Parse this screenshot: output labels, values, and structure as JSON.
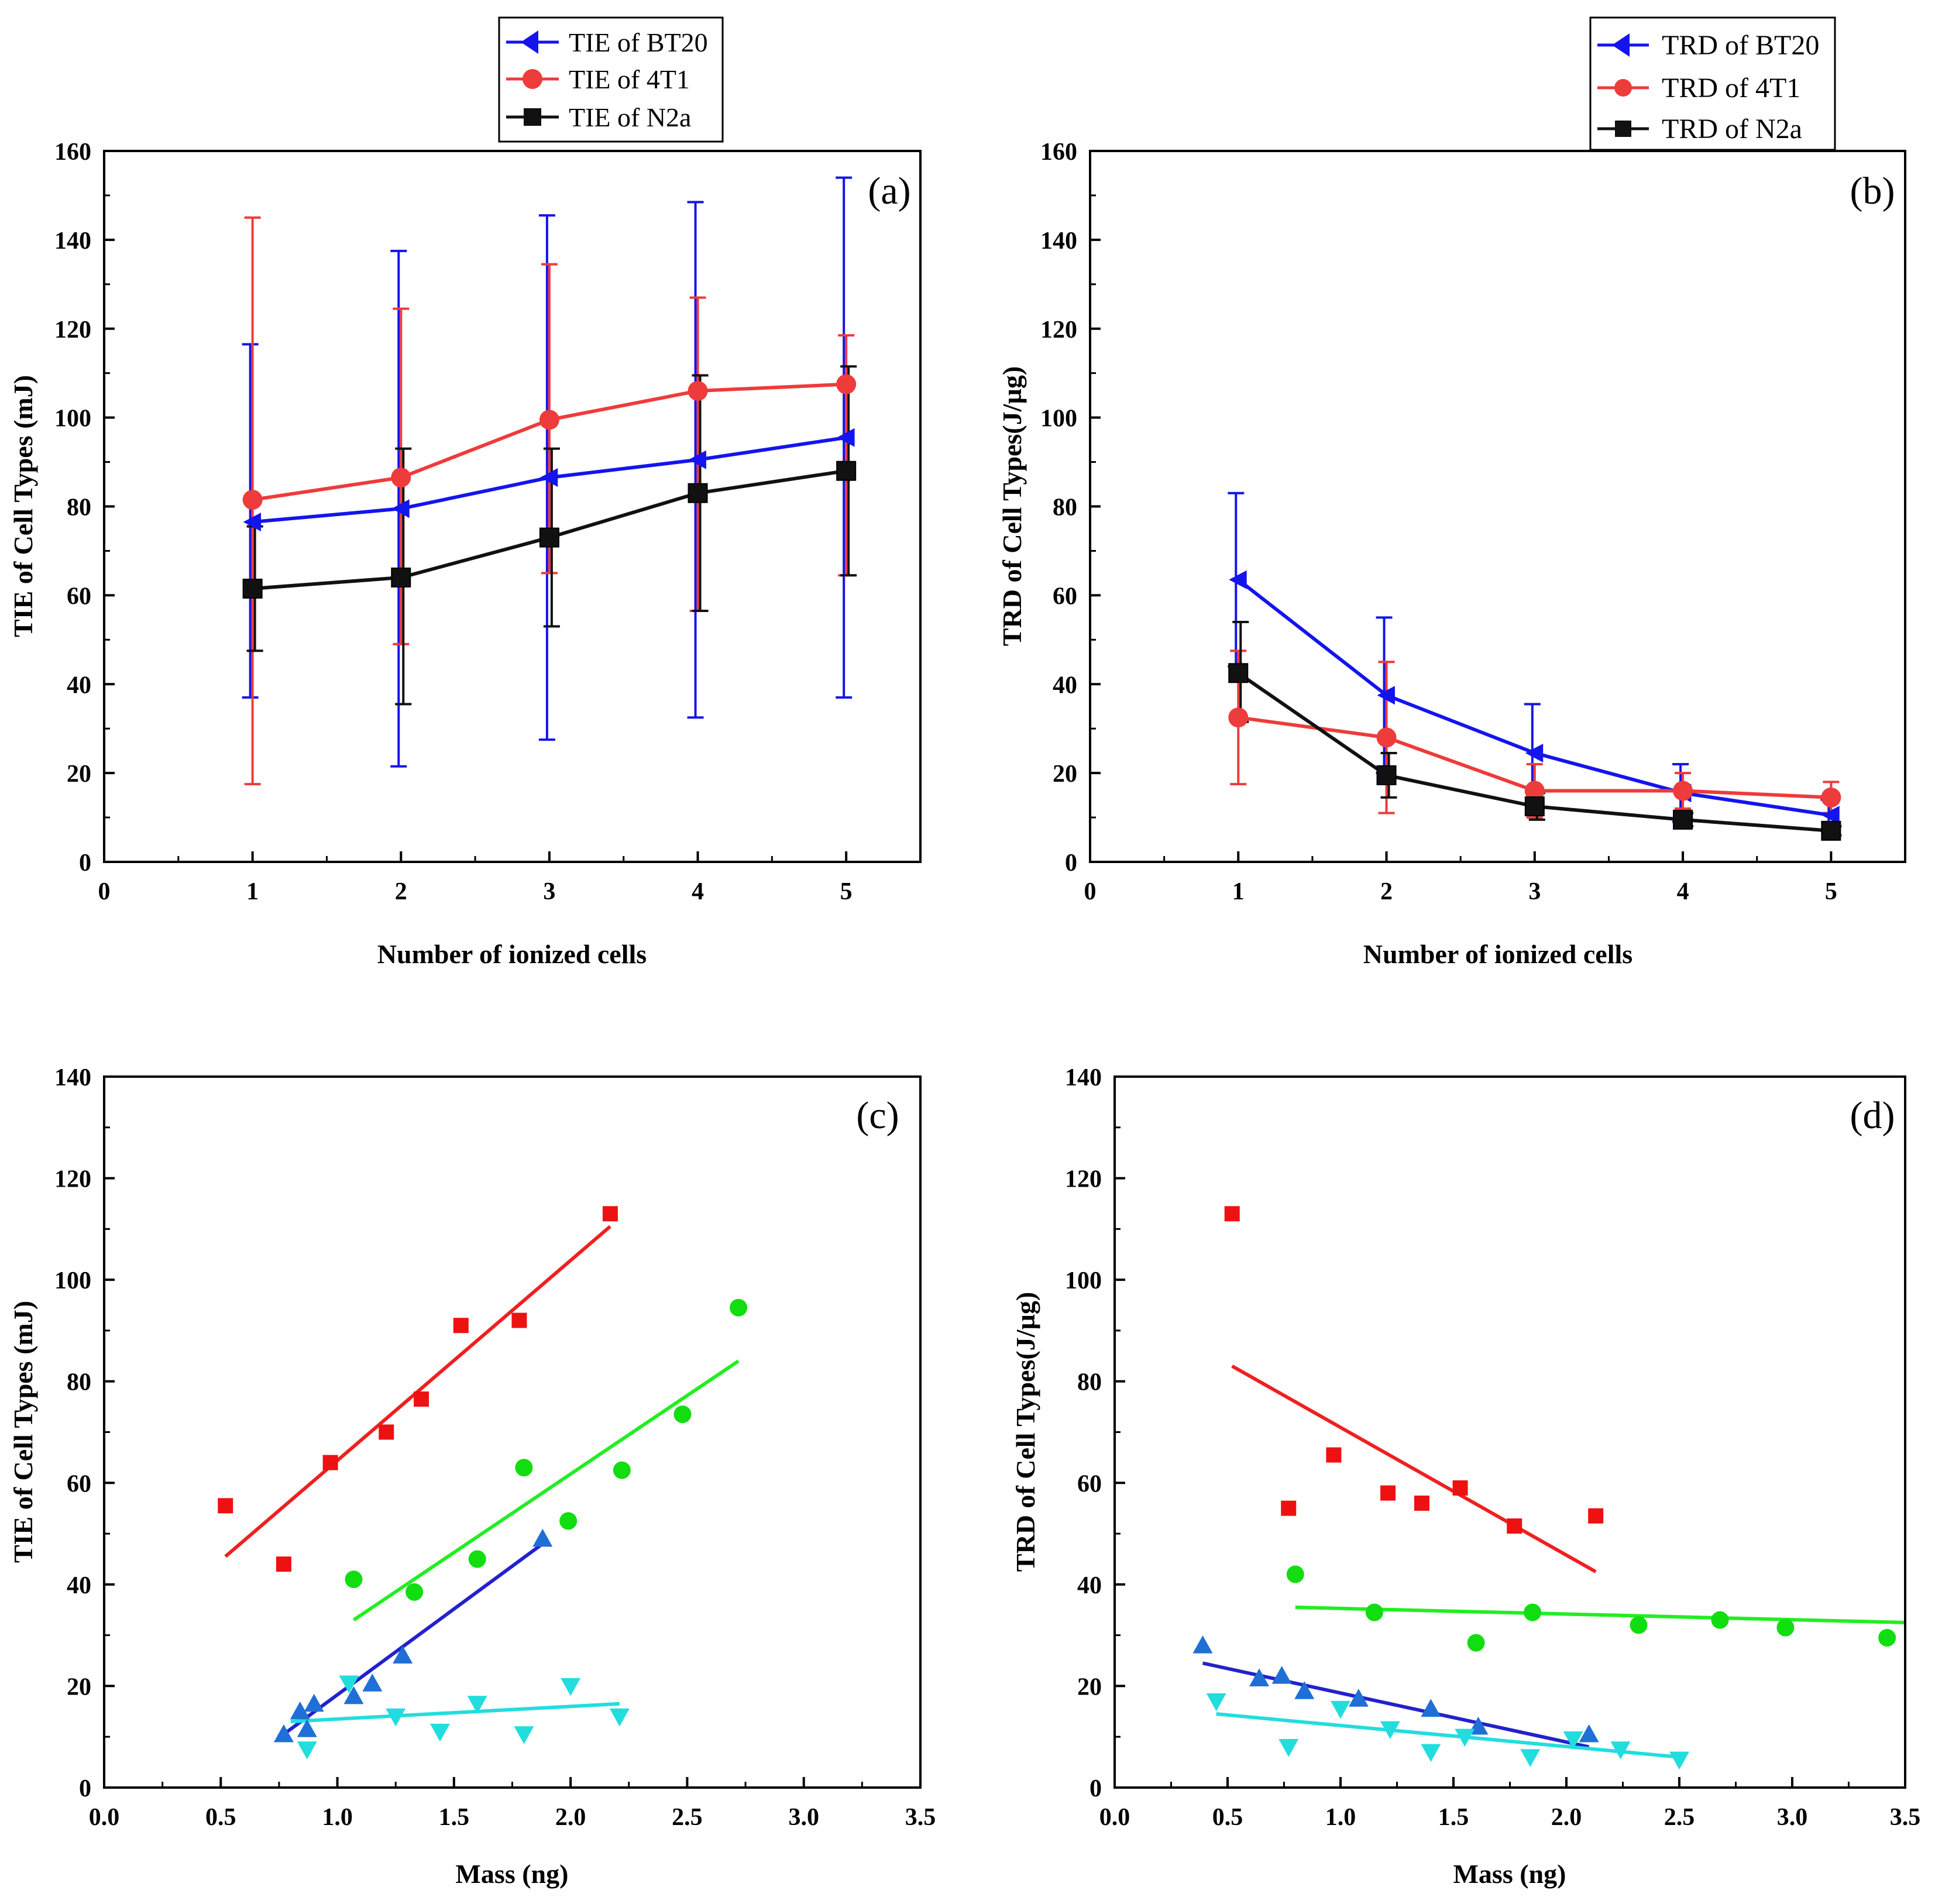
{
  "colors": {
    "blue": "#1414ee",
    "red": "#ee3b3b",
    "black": "#111111",
    "scatter_red": "#ee1111",
    "scatter_green": "#11dd11",
    "scatter_blue": "#1f6fd6",
    "scatter_cyan": "#22dddd",
    "fit_red": "#ee2020",
    "fit_green": "#22ee22",
    "fit_blue": "#2222cc",
    "fit_cyan": "#22dddd"
  },
  "chart_data": [
    {
      "id": "a",
      "type": "line",
      "panel_label": "(a)",
      "xlabel": "Number of ionized cells",
      "ylabel": "TIE of Cell Types (mJ)",
      "xlim": [
        0,
        5.5
      ],
      "ylim": [
        0,
        160
      ],
      "xticks": [
        0,
        1,
        2,
        3,
        4,
        5
      ],
      "xtick_labels": [
        "0",
        "1",
        "2",
        "3",
        "4",
        "5"
      ],
      "yticks": [
        0,
        20,
        40,
        60,
        80,
        100,
        120,
        140,
        160
      ],
      "ytick_labels": [
        "0",
        "20",
        "40",
        "60",
        "80",
        "100",
        "120",
        "140",
        "160"
      ],
      "legend": [
        "TIE of BT20",
        "TIE of 4T1",
        "TIE of N2a"
      ],
      "x": [
        1,
        2,
        3,
        4,
        5
      ],
      "series": [
        {
          "name": "TIE of BT20",
          "color_key": "blue",
          "marker": "triangle-left",
          "values": [
            76.5,
            79.5,
            86.5,
            90.5,
            95.5
          ],
          "err_lo": [
            37,
            21.5,
            27.5,
            32.5,
            37
          ],
          "err_hi": [
            116.5,
            137.5,
            145.5,
            148.5,
            154
          ]
        },
        {
          "name": "TIE of 4T1",
          "color_key": "red",
          "marker": "circle",
          "values": [
            81.5,
            86.5,
            99.5,
            106,
            107.5
          ],
          "err_lo": [
            17.5,
            49,
            65,
            56.5,
            64.5
          ],
          "err_hi": [
            145,
            124.5,
            134.5,
            127,
            118.5
          ]
        },
        {
          "name": "TIE of N2a",
          "color_key": "black",
          "marker": "square",
          "values": [
            61.5,
            64,
            73,
            83,
            88
          ],
          "err_lo": [
            47.5,
            35.5,
            53,
            56.5,
            64.5
          ],
          "err_hi": [
            75.5,
            93,
            93,
            109.5,
            111.5
          ]
        }
      ]
    },
    {
      "id": "b",
      "type": "line",
      "panel_label": "(b)",
      "xlabel": "Number of ionized cells",
      "ylabel": "TRD of Cell Types(J/µg)",
      "xlim": [
        0,
        5.5
      ],
      "ylim": [
        0,
        160
      ],
      "xticks": [
        0,
        1,
        2,
        3,
        4,
        5
      ],
      "xtick_labels": [
        "0",
        "1",
        "2",
        "3",
        "4",
        "5"
      ],
      "yticks": [
        0,
        20,
        40,
        60,
        80,
        100,
        120,
        140,
        160
      ],
      "ytick_labels": [
        "0",
        "20",
        "40",
        "60",
        "80",
        "100",
        "120",
        "140",
        "160"
      ],
      "legend": [
        "TRD of BT20",
        "TRD of 4T1",
        "TRD of N2a"
      ],
      "x": [
        1,
        2,
        3,
        4,
        5
      ],
      "series": [
        {
          "name": "TRD of BT20",
          "color_key": "blue",
          "marker": "triangle-left",
          "values": [
            63.5,
            37.5,
            24.5,
            15.5,
            10.5
          ],
          "err_lo": [
            44,
            20,
            13,
            9,
            7
          ],
          "err_hi": [
            83,
            55,
            35.5,
            22,
            14
          ]
        },
        {
          "name": "TRD of 4T1",
          "color_key": "red",
          "marker": "circle",
          "values": [
            32.5,
            28,
            16,
            16,
            14.5
          ],
          "err_lo": [
            17.5,
            11,
            10,
            12,
            11
          ],
          "err_hi": [
            47.5,
            45,
            22,
            20,
            18
          ]
        },
        {
          "name": "TRD of N2a",
          "color_key": "black",
          "marker": "square",
          "values": [
            42.5,
            19.5,
            12.5,
            9.5,
            7
          ],
          "err_lo": [
            31.5,
            14.5,
            9.5,
            8,
            6
          ],
          "err_hi": [
            54,
            24.5,
            15.5,
            11,
            8
          ]
        }
      ]
    },
    {
      "id": "c",
      "type": "scatter",
      "panel_label": "(c)",
      "xlabel": "Mass (ng)",
      "ylabel": "TIE of Cell Types (mJ)",
      "xlim": [
        0,
        3.5
      ],
      "ylim": [
        0,
        140
      ],
      "xticks": [
        0,
        0.5,
        1,
        1.5,
        2,
        2.5,
        3,
        3.5
      ],
      "xtick_labels": [
        "0.0",
        "0.5",
        "1.0",
        "1.5",
        "2.0",
        "2.5",
        "3.0",
        "3.5"
      ],
      "yticks": [
        0,
        20,
        40,
        60,
        80,
        100,
        120,
        140
      ],
      "ytick_labels": [
        "0",
        "20",
        "40",
        "60",
        "80",
        "100",
        "120",
        "140"
      ],
      "series": [
        {
          "color_key": "scatter_red",
          "marker": "square",
          "x": [
            0.52,
            0.77,
            0.97,
            1.21,
            1.36,
            1.53,
            1.78,
            2.17
          ],
          "y": [
            55.5,
            44,
            64,
            70,
            76.5,
            91,
            92,
            113
          ],
          "fit": [
            [
              0.52,
              45.5
            ],
            [
              2.17,
              110.5
            ]
          ],
          "fit_color_key": "fit_red"
        },
        {
          "color_key": "scatter_green",
          "marker": "circle",
          "x": [
            1.07,
            1.33,
            1.6,
            1.8,
            1.99,
            2.22,
            2.48,
            2.72
          ],
          "y": [
            41,
            38.5,
            45,
            63,
            52.5,
            62.5,
            73.5,
            94.5
          ],
          "fit": [
            [
              1.07,
              33
            ],
            [
              2.72,
              84
            ]
          ],
          "fit_color_key": "fit_green"
        },
        {
          "color_key": "scatter_blue",
          "marker": "triangle-up",
          "x": [
            0.77,
            0.84,
            0.87,
            0.9,
            1.07,
            1.15,
            1.28,
            1.88
          ],
          "y": [
            10.5,
            15,
            11.5,
            16.5,
            18,
            20.5,
            26,
            49
          ],
          "fit": [
            [
              0.77,
              10.5
            ],
            [
              1.88,
              48
            ]
          ],
          "fit_color_key": "fit_blue"
        },
        {
          "color_key": "scatter_cyan",
          "marker": "triangle-down",
          "x": [
            0.87,
            1.05,
            1.25,
            1.44,
            1.6,
            1.8,
            2.0,
            2.21
          ],
          "y": [
            7.5,
            20.5,
            14,
            11,
            16.5,
            10.5,
            20,
            14
          ],
          "fit": [
            [
              0.8,
              13
            ],
            [
              2.21,
              16.5
            ]
          ],
          "fit_color_key": "fit_cyan"
        }
      ]
    },
    {
      "id": "d",
      "type": "scatter",
      "panel_label": "(d)",
      "xlabel": "Mass (ng)",
      "ylabel": "TRD of Cell Types(J/µg)",
      "xlim": [
        0,
        3.5
      ],
      "ylim": [
        0,
        140
      ],
      "xticks": [
        0,
        0.5,
        1,
        1.5,
        2,
        2.5,
        3,
        3.5
      ],
      "xtick_labels": [
        "0.0",
        "0.5",
        "1.0",
        "1.5",
        "2.0",
        "2.5",
        "3.0",
        "3.5"
      ],
      "yticks": [
        0,
        20,
        40,
        60,
        80,
        100,
        120,
        140
      ],
      "ytick_labels": [
        "0",
        "20",
        "40",
        "60",
        "80",
        "100",
        "120",
        "140"
      ],
      "series": [
        {
          "color_key": "scatter_red",
          "marker": "square",
          "x": [
            0.52,
            0.77,
            0.97,
            1.21,
            1.36,
            1.53,
            1.77,
            2.13
          ],
          "y": [
            113,
            55,
            65.5,
            58,
            56,
            59,
            51.5,
            53.5
          ],
          "fit": [
            [
              0.52,
              83
            ],
            [
              2.13,
              42.5
            ]
          ],
          "fit_color_key": "fit_red"
        },
        {
          "color_key": "scatter_green",
          "marker": "circle",
          "x": [
            0.8,
            1.15,
            1.6,
            1.85,
            2.32,
            2.68,
            2.97,
            3.42
          ],
          "y": [
            42,
            34.5,
            28.5,
            34.5,
            32,
            33,
            31.5,
            29.5
          ],
          "fit": [
            [
              0.8,
              35.5
            ],
            [
              3.5,
              32.5
            ]
          ],
          "fit_color_key": "fit_green"
        },
        {
          "color_key": "scatter_blue",
          "marker": "triangle-up",
          "x": [
            0.39,
            0.64,
            0.74,
            0.84,
            1.08,
            1.4,
            1.61,
            2.1
          ],
          "y": [
            28,
            21.5,
            22,
            19,
            17.5,
            15.5,
            12,
            10.5
          ],
          "fit": [
            [
              0.39,
              24.5
            ],
            [
              2.1,
              8
            ]
          ],
          "fit_color_key": "fit_blue"
        },
        {
          "color_key": "scatter_cyan",
          "marker": "triangle-down",
          "x": [
            0.45,
            0.77,
            1.0,
            1.22,
            1.4,
            1.55,
            1.84,
            2.03,
            2.24,
            2.5
          ],
          "y": [
            17,
            8,
            15.5,
            11.5,
            7,
            10,
            6,
            9.5,
            7.5,
            5.5
          ],
          "fit": [
            [
              0.45,
              14.5
            ],
            [
              2.5,
              6
            ]
          ],
          "fit_color_key": "fit_cyan"
        }
      ]
    }
  ]
}
